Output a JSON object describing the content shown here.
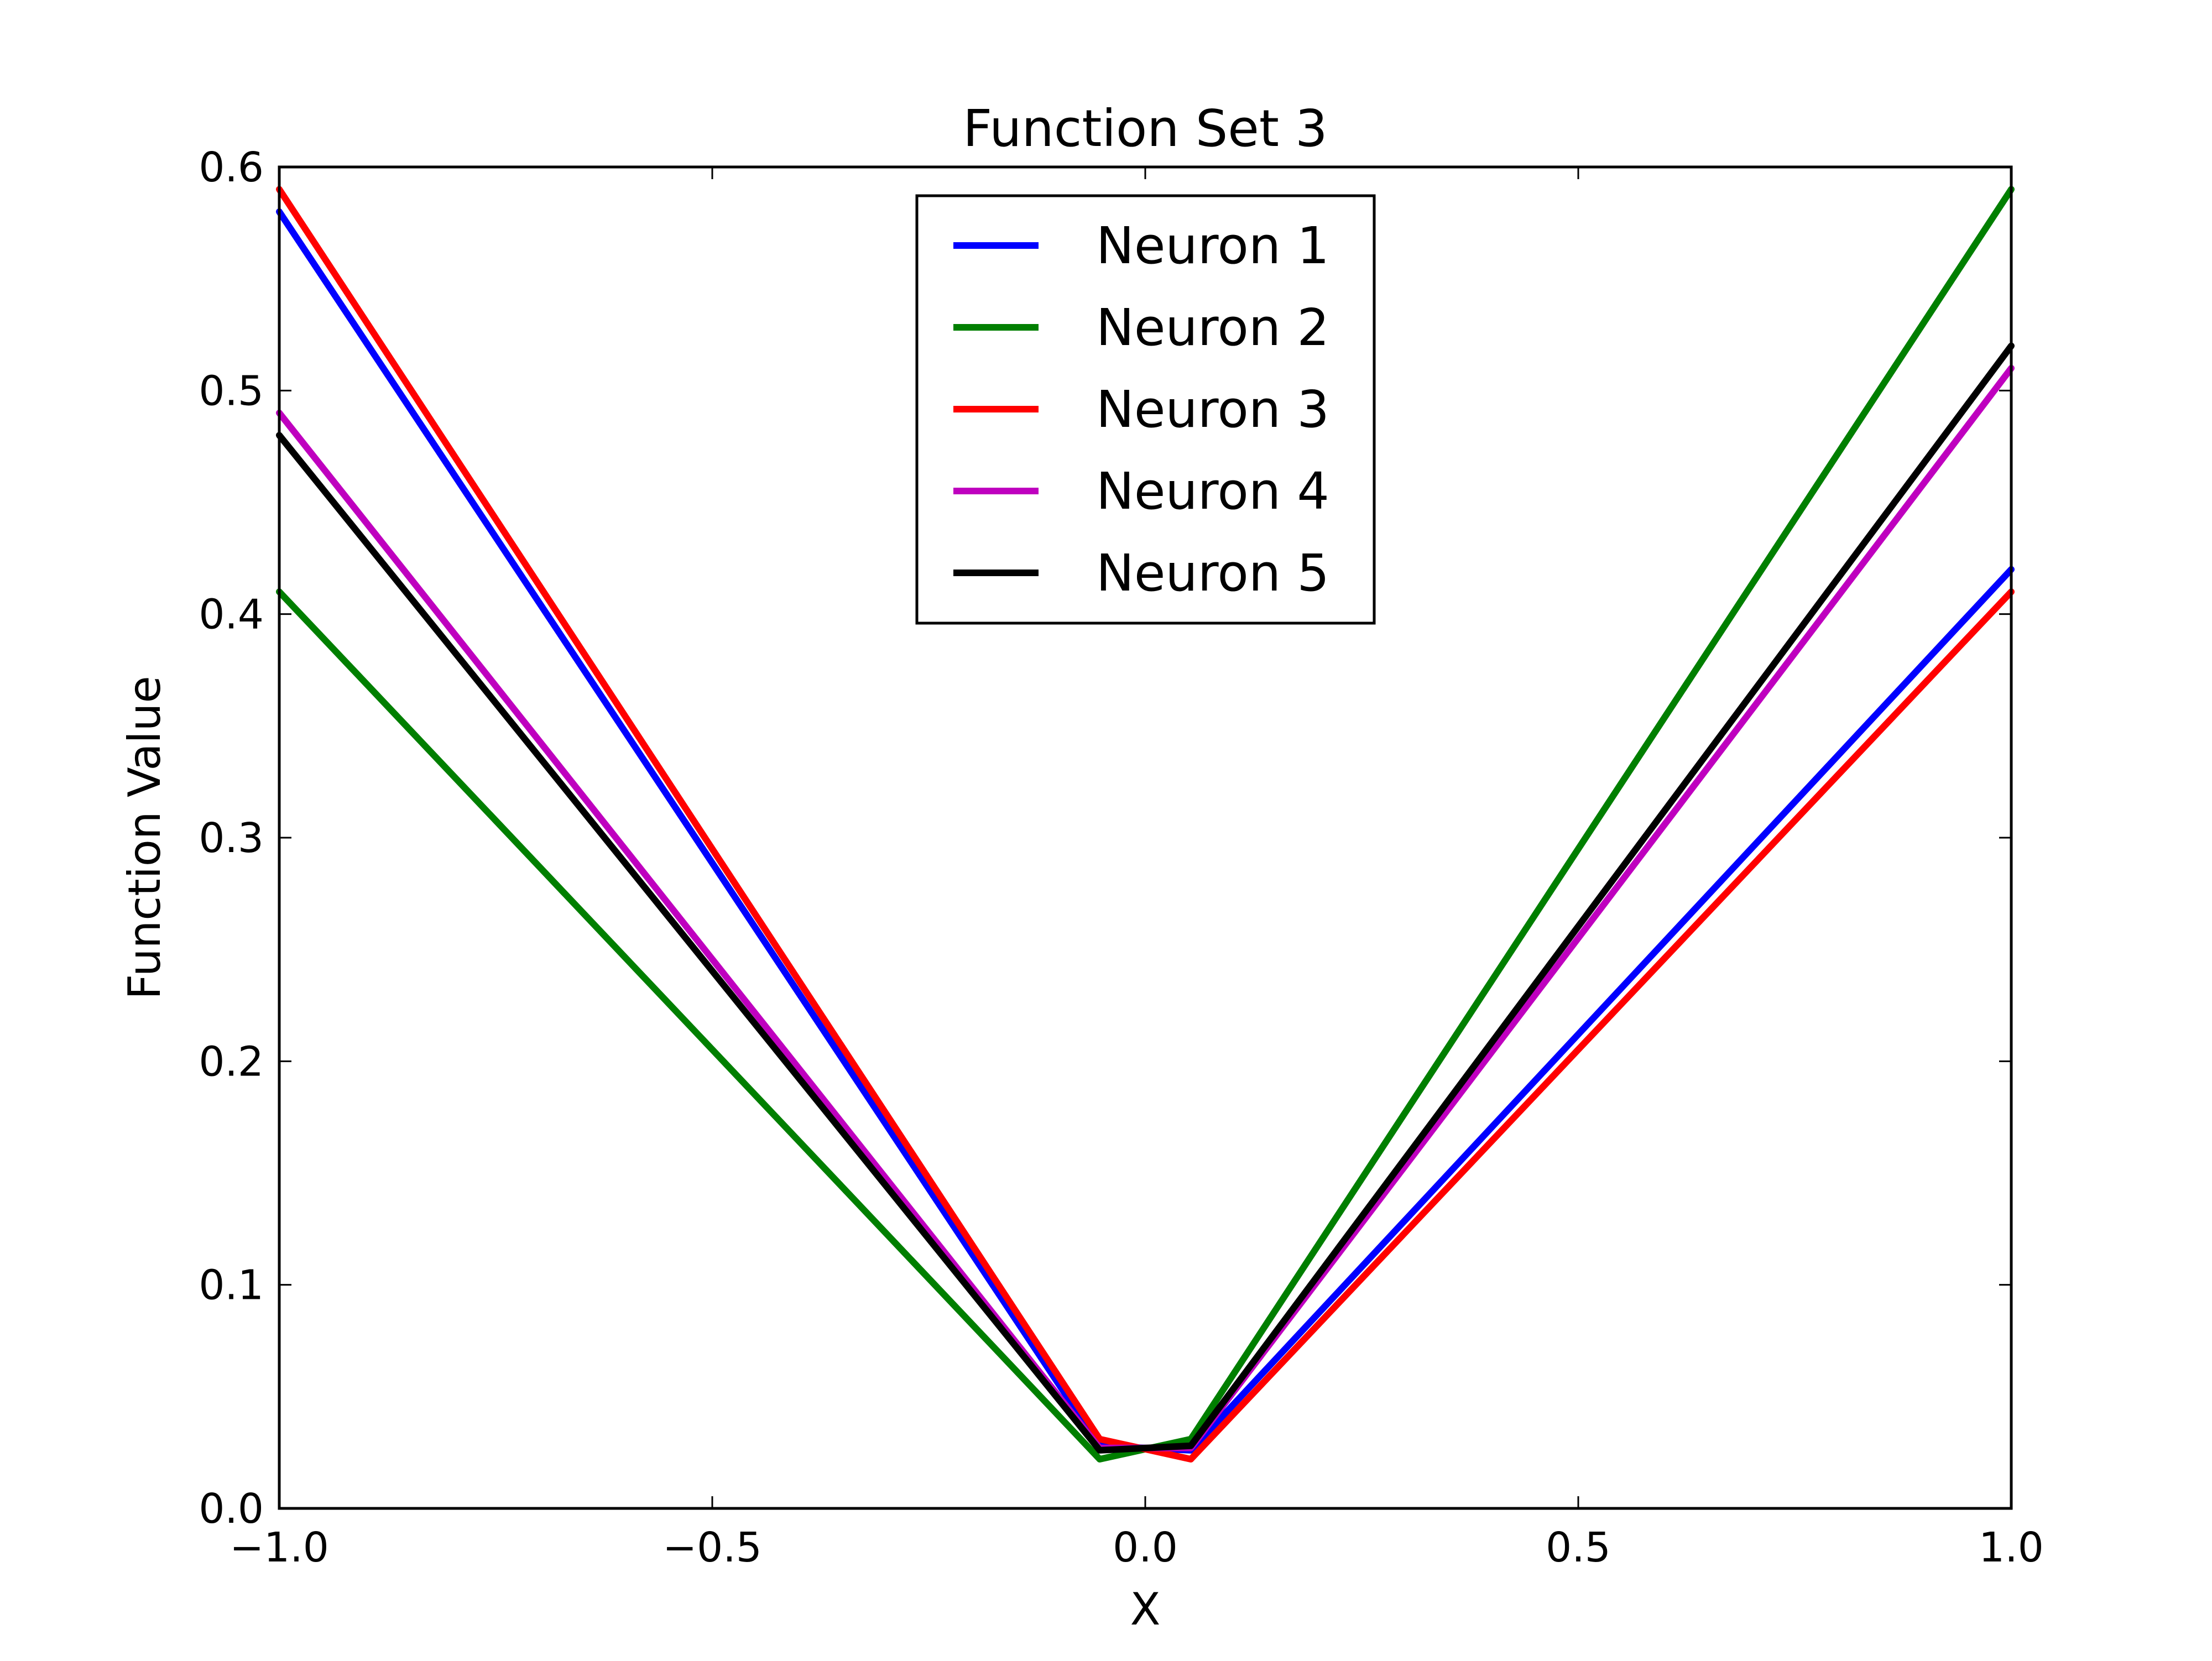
{
  "chart_data": {
    "type": "line",
    "title": "Function Set 3",
    "xlabel": "X",
    "ylabel": "Function Value",
    "xlim": [
      -1.0,
      1.0
    ],
    "ylim": [
      0.0,
      0.6
    ],
    "xticks": [
      -1.0,
      -0.5,
      0.0,
      0.5,
      1.0
    ],
    "xtick_labels": [
      "−1.0",
      "−0.5",
      "0.0",
      "0.5",
      "1.0"
    ],
    "yticks": [
      0.0,
      0.1,
      0.2,
      0.3,
      0.4,
      0.5,
      0.6
    ],
    "ytick_labels": [
      "0.0",
      "0.1",
      "0.2",
      "0.3",
      "0.4",
      "0.5",
      "0.6"
    ],
    "grid": false,
    "legend_position": "top-center",
    "x": [
      -1.0,
      -0.0526,
      0.0526,
      1.0
    ],
    "series": [
      {
        "name": "Neuron 1",
        "color": "#0000ff",
        "values": [
          0.58,
          0.028,
          0.026,
          0.42
        ]
      },
      {
        "name": "Neuron 2",
        "color": "#007f00",
        "values": [
          0.41,
          0.022,
          0.031,
          0.59
        ]
      },
      {
        "name": "Neuron 3",
        "color": "#ff0000",
        "values": [
          0.59,
          0.031,
          0.022,
          0.41
        ]
      },
      {
        "name": "Neuron 4",
        "color": "#bf00bf",
        "values": [
          0.49,
          0.027,
          0.027,
          0.51
        ]
      },
      {
        "name": "Neuron 5",
        "color": "#000000",
        "values": [
          0.48,
          0.026,
          0.028,
          0.52
        ]
      }
    ]
  }
}
